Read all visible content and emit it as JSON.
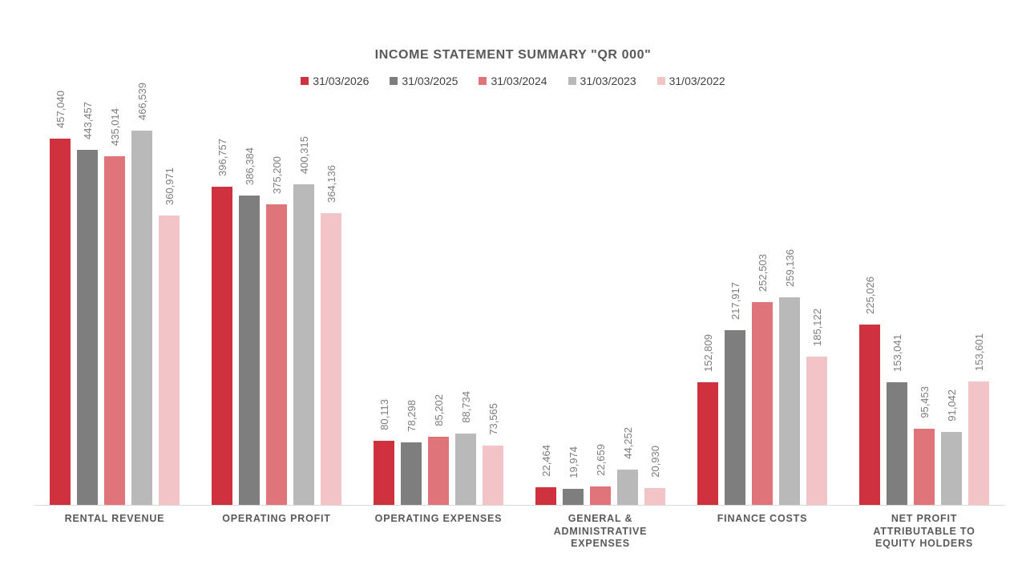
{
  "chart_data": {
    "type": "bar",
    "title": "INCOME STATEMENT SUMMARY \"QR 000\"",
    "legend_position": "top",
    "grid": false,
    "value_axis_visible": false,
    "ylim": [
      0,
      500000
    ],
    "axis_line_color": "#d9d9d9",
    "title_color": "#595959",
    "data_label_color": "#7c7c7c",
    "categories": [
      "RENTAL REVENUE",
      "OPERATING PROFIT",
      "OPERATING EXPENSES",
      "GENERAL & ADMINISTRATIVE EXPENSES",
      "FINANCE COSTS",
      "NET PROFIT ATTRIBUTABLE TO EQUITY HOLDERS"
    ],
    "series": [
      {
        "name": "31/03/2026",
        "color": "#ce323e",
        "values": [
          457040,
          396757,
          80113,
          22464,
          152809,
          225026
        ]
      },
      {
        "name": "31/03/2025",
        "color": "#7e7e7e",
        "values": [
          443457,
          386384,
          78298,
          19974,
          217917,
          153041
        ]
      },
      {
        "name": "31/03/2024",
        "color": "#df757b",
        "values": [
          435014,
          375200,
          85202,
          22659,
          252503,
          95453
        ]
      },
      {
        "name": "31/03/2023",
        "color": "#b9b9b9",
        "values": [
          466539,
          400315,
          88734,
          44252,
          259136,
          91042
        ]
      },
      {
        "name": "31/03/2022",
        "color": "#f2c4c8",
        "values": [
          360971,
          364136,
          73565,
          20930,
          185122,
          153601
        ]
      }
    ]
  }
}
